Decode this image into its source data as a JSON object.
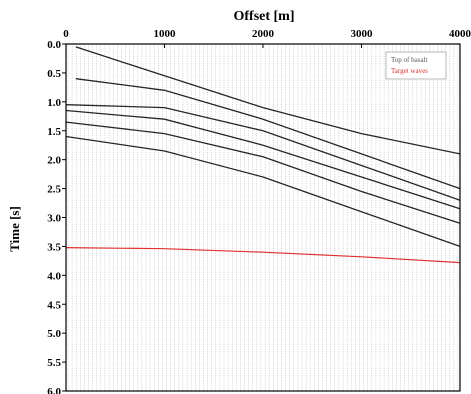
{
  "chart_data": {
    "type": "line",
    "xlabel": "Offset [m]",
    "ylabel": "Time [s]",
    "xlim": [
      0,
      4000
    ],
    "ylim": [
      0.0,
      6.0
    ],
    "x_ticks": [
      "0",
      "1000",
      "2000",
      "3000",
      "4000"
    ],
    "y_ticks": [
      "0.0",
      "0.5",
      "1.0",
      "1.5",
      "2.0",
      "2.5",
      "3.0",
      "3.5",
      "4.0",
      "4.5",
      "5.0",
      "5.5",
      "6.0"
    ],
    "x_axis_position": "top",
    "legend": {
      "position": "top-right",
      "entries": [
        {
          "label": "Top of basalt",
          "color": "#555555"
        },
        {
          "label": "Target waves",
          "color": "#e03030"
        }
      ]
    },
    "series": [
      {
        "name": "Target waves",
        "color": "#e03030",
        "x": [
          0,
          1000,
          2000,
          3000,
          4000
        ],
        "y": [
          3.52,
          3.54,
          3.6,
          3.68,
          3.78
        ]
      }
    ],
    "events": [
      {
        "color": "#000000",
        "x": [
          100,
          1000,
          2000,
          3000,
          4000
        ],
        "y": [
          0.05,
          0.55,
          1.1,
          1.55,
          1.9
        ]
      },
      {
        "color": "#000000",
        "x": [
          100,
          1000,
          2000,
          3000,
          4000
        ],
        "y": [
          0.6,
          0.8,
          1.3,
          1.9,
          2.5
        ]
      },
      {
        "color": "#000000",
        "x": [
          0,
          1000,
          2000,
          3000,
          4000
        ],
        "y": [
          1.05,
          1.1,
          1.5,
          2.1,
          2.7
        ]
      },
      {
        "color": "#000000",
        "x": [
          0,
          1000,
          2000,
          3000,
          4000
        ],
        "y": [
          1.15,
          1.3,
          1.75,
          2.3,
          2.85
        ]
      },
      {
        "color": "#000000",
        "x": [
          0,
          1000,
          2000,
          3000,
          4000
        ],
        "y": [
          1.35,
          1.55,
          1.95,
          2.55,
          3.1
        ]
      },
      {
        "color": "#000000",
        "x": [
          0,
          1000,
          2000,
          3000,
          4000
        ],
        "y": [
          1.6,
          1.85,
          2.3,
          2.9,
          3.5
        ]
      }
    ]
  }
}
